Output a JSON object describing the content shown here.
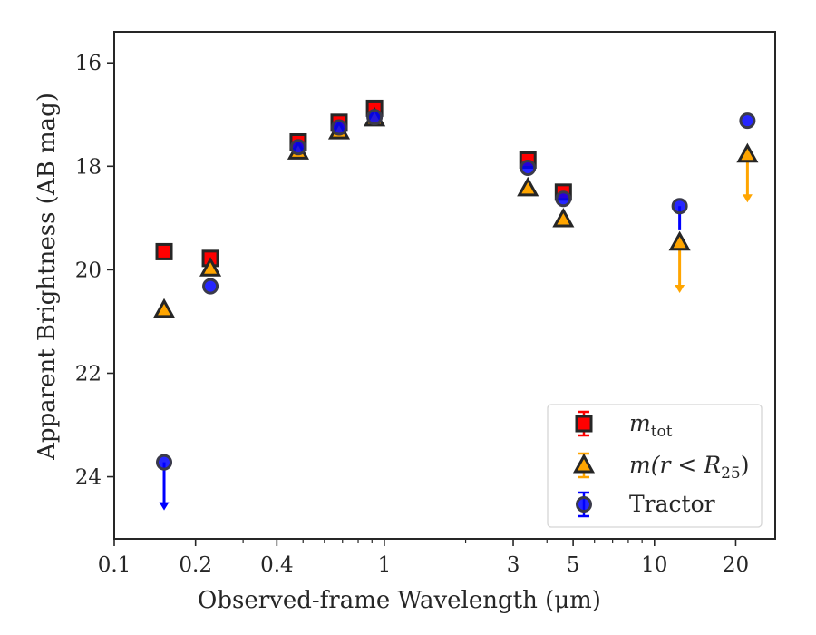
{
  "chart_data": {
    "type": "scatter",
    "xlabel": "Observed-frame Wavelength (μm)",
    "ylabel": "Apparent Brightness (AB mag)",
    "x_scale": "log",
    "xlim": [
      0.1,
      28
    ],
    "ylim": [
      25.2,
      15.4
    ],
    "y_inverted": true,
    "x_ticks": [
      0.1,
      0.2,
      0.4,
      1,
      3,
      5,
      10,
      20
    ],
    "x_tick_labels": [
      "0.1",
      "0.2",
      "0.4",
      "1",
      "3",
      "5",
      "10",
      "20"
    ],
    "y_ticks": [
      16,
      18,
      20,
      22,
      24
    ],
    "y_tick_labels": [
      "16",
      "18",
      "20",
      "22",
      "24"
    ],
    "legend_position": "lower-right",
    "series": [
      {
        "name": "m_tot",
        "label_main": "m",
        "label_sub": "tot",
        "marker": "square",
        "color": "#ff0000",
        "edge": "#262626",
        "points": [
          {
            "x": 0.153,
            "y": 19.65
          },
          {
            "x": 0.227,
            "y": 19.78
          },
          {
            "x": 0.48,
            "y": 17.53
          },
          {
            "x": 0.68,
            "y": 17.15
          },
          {
            "x": 0.92,
            "y": 16.88
          },
          {
            "x": 3.4,
            "y": 17.88
          },
          {
            "x": 4.6,
            "y": 18.5
          }
        ]
      },
      {
        "name": "m(r < R_25)",
        "label_main": "m(r < R",
        "label_sub": "25",
        "label_end": ")",
        "marker": "triangle",
        "color": "#ffa500",
        "edge": "#262626",
        "points": [
          {
            "x": 0.153,
            "y": 20.78,
            "err": 0.12
          },
          {
            "x": 0.227,
            "y": 19.98
          },
          {
            "x": 0.48,
            "y": 17.72
          },
          {
            "x": 0.68,
            "y": 17.33
          },
          {
            "x": 0.92,
            "y": 17.08
          },
          {
            "x": 3.4,
            "y": 18.43
          },
          {
            "x": 4.6,
            "y": 19.03
          },
          {
            "x": 12.4,
            "y": 19.48,
            "upper_limit_to": 20.45
          },
          {
            "x": 22.1,
            "y": 17.78,
            "upper_limit_to": 18.7
          }
        ]
      },
      {
        "name": "Tractor",
        "label_main": "Tractor",
        "marker": "circle",
        "color": "#0000ff",
        "edge": "#262626",
        "points": [
          {
            "x": 0.153,
            "y": 23.72,
            "upper_limit_to": 24.65
          },
          {
            "x": 0.227,
            "y": 20.32
          },
          {
            "x": 0.48,
            "y": 17.63
          },
          {
            "x": 0.68,
            "y": 17.25
          },
          {
            "x": 0.92,
            "y": 17.05
          },
          {
            "x": 3.4,
            "y": 18.03
          },
          {
            "x": 4.6,
            "y": 18.63
          },
          {
            "x": 12.4,
            "y": 18.77,
            "err_lower": 0.45
          },
          {
            "x": 22.1,
            "y": 17.12
          }
        ]
      }
    ]
  }
}
